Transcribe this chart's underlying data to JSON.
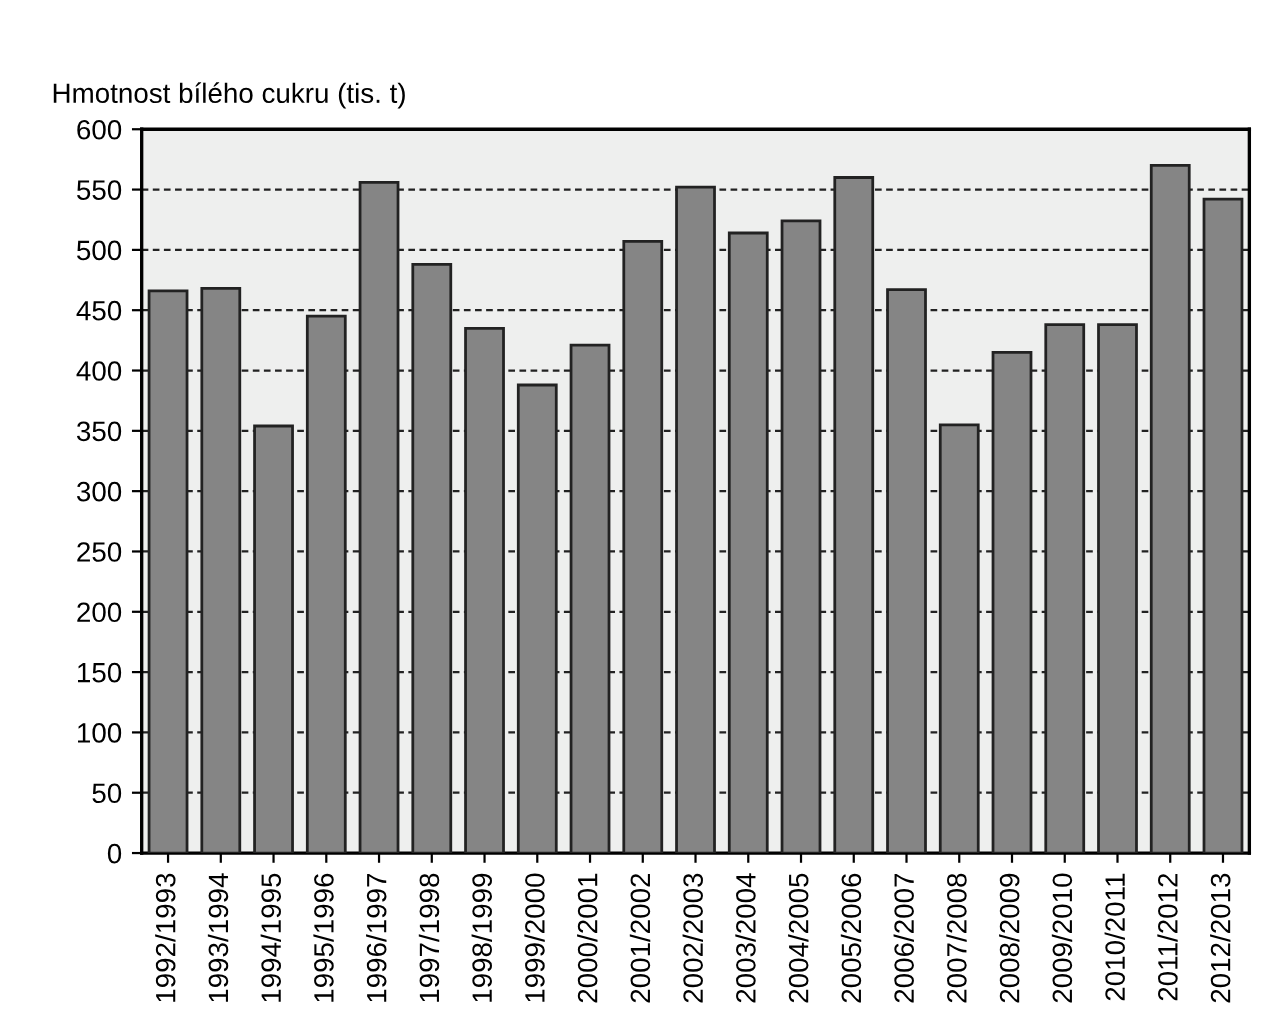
{
  "chart_data": {
    "type": "bar",
    "ylabel": "Hmotnost bílého cukru (tis. t)",
    "categories": [
      "1992/1993",
      "1993/1994",
      "1994/1995",
      "1995/1996",
      "1996/1997",
      "1997/1998",
      "1998/1999",
      "1999/2000",
      "2000/2001",
      "2001/2002",
      "2002/2003",
      "2003/2004",
      "2004/2005",
      "2005/2006",
      "2006/2007",
      "2007/2008",
      "2008/2009",
      "2009/2010",
      "2010/2011",
      "2011/2012",
      "2012/2013"
    ],
    "values": [
      466,
      468,
      354,
      445,
      556,
      488,
      435,
      388,
      421,
      507,
      552,
      514,
      524,
      560,
      467,
      355,
      415,
      438,
      438,
      570,
      542
    ],
    "color": "#858585",
    "ylim": [
      0,
      600
    ],
    "yticks": [
      0,
      50,
      100,
      150,
      200,
      250,
      300,
      350,
      400,
      450,
      500,
      550,
      600
    ],
    "grid": "y"
  }
}
